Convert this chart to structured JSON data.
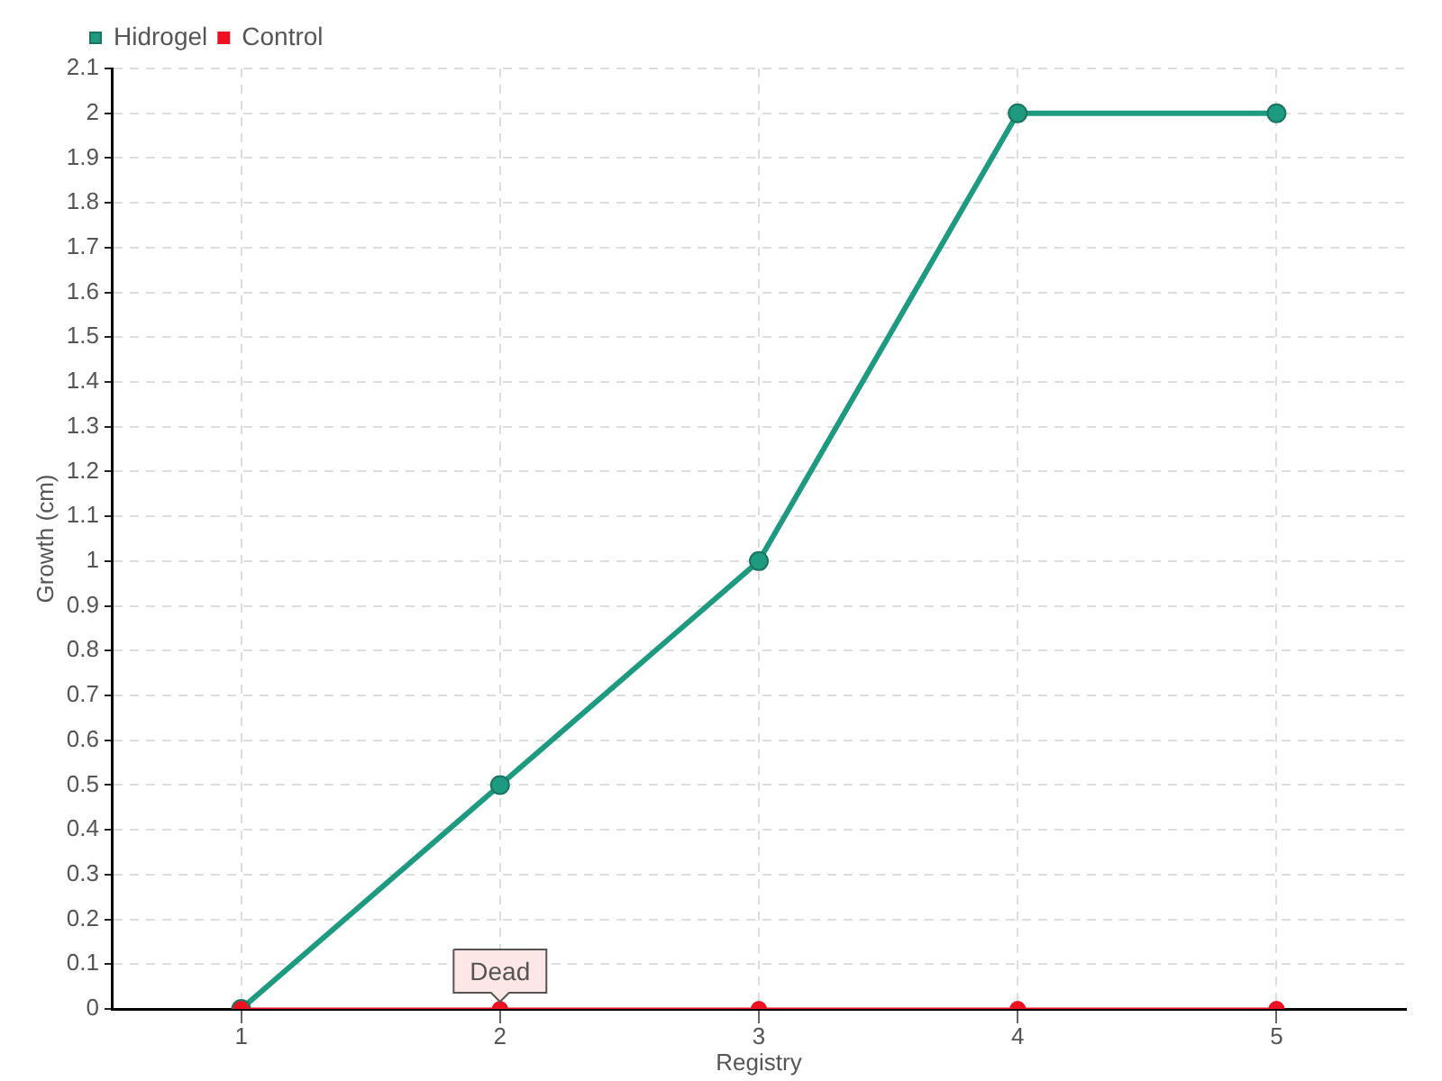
{
  "chart_data": {
    "type": "line",
    "xlabel": "Registry",
    "ylabel": "Growth (cm)",
    "categories": [
      "1",
      "2",
      "3",
      "4",
      "5"
    ],
    "series": [
      {
        "name": "Hidrogel",
        "color": "#1d9a80",
        "values": [
          0,
          0.5,
          1,
          2,
          2
        ]
      },
      {
        "name": "Control",
        "color": "#ee1122",
        "values": [
          0,
          0,
          0,
          0,
          0
        ]
      }
    ],
    "ylim": [
      0,
      2.1
    ],
    "yticks": [
      0,
      0.1,
      0.2,
      0.3,
      0.4,
      0.5,
      0.6,
      0.7,
      0.8,
      0.9,
      1,
      1.1,
      1.2,
      1.3,
      1.4,
      1.5,
      1.6,
      1.7,
      1.8,
      1.9,
      2,
      2.1
    ],
    "grid": true,
    "legend": "top left",
    "marker": "circle",
    "annotations": [
      {
        "text": "Dead",
        "x": "2",
        "y": 0
      }
    ]
  }
}
